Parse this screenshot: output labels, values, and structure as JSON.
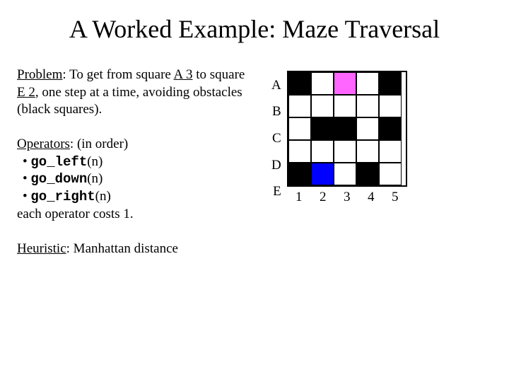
{
  "title": "A Worked Example: Maze Traversal",
  "problem": {
    "label": "Problem",
    "prefix": ": To get from square ",
    "start": "A 3",
    "mid": " to square ",
    "goal": "E 2",
    "suffix": ", one step at a time, avoiding obstacles (black squares)."
  },
  "operators": {
    "label": "Operators",
    "suffix": ": (in order)",
    "items": [
      {
        "fn": "go_left",
        "arg": "(n)"
      },
      {
        "fn": "go_down",
        "arg": "(n)"
      },
      {
        "fn": "go_right",
        "arg": "(n)"
      }
    ],
    "note": "each operator costs 1."
  },
  "heuristic": {
    "label": "Heuristic",
    "value": ": Manhattan distance"
  },
  "maze": {
    "rows": [
      "A",
      "B",
      "C",
      "D",
      "E"
    ],
    "cols": [
      "1",
      "2",
      "3",
      "4",
      "5"
    ],
    "cell_size": 32,
    "colors": {
      "empty": "#ffffff",
      "black": "#000000",
      "pink": "#ff66ff",
      "blue": "#0000ff",
      "grid_border": "#000000"
    },
    "grid": [
      [
        "black",
        "empty",
        "pink",
        "empty",
        "black"
      ],
      [
        "empty",
        "empty",
        "empty",
        "empty",
        "empty"
      ],
      [
        "empty",
        "black",
        "black",
        "empty",
        "black"
      ],
      [
        "empty",
        "empty",
        "empty",
        "empty",
        "empty"
      ],
      [
        "black",
        "blue",
        "empty",
        "black",
        "empty"
      ]
    ]
  }
}
